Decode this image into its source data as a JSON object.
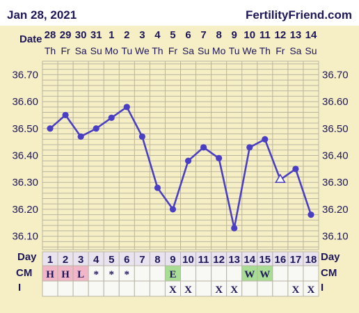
{
  "header": {
    "date": "Jan 28, 2021",
    "brand": "FertilityFriend.com"
  },
  "row_labels": {
    "date": "Date",
    "day": "Day",
    "cm": "CM",
    "intercourse": "I"
  },
  "colors": {
    "panel_bg": "#f6efc6",
    "grid": "#b8b4a0",
    "line": "#4a3fc2",
    "text_dark": "#1d1659",
    "cm_pink": "#f2b6c9",
    "cm_green": "#a9dc94",
    "day_row_bg": "#e8e3ef",
    "blank_row_bg": "#f8f8f4"
  },
  "chart_data": {
    "type": "line",
    "y_ticks": [
      "36.70",
      "36.60",
      "36.50",
      "36.40",
      "36.30",
      "36.20",
      "36.10"
    ],
    "ylim": [
      36.05,
      36.75
    ],
    "dates": [
      "28",
      "29",
      "30",
      "31",
      "1",
      "2",
      "3",
      "4",
      "5",
      "6",
      "7",
      "8",
      "9",
      "10",
      "11",
      "12",
      "13",
      "14"
    ],
    "weekdays": [
      "Th",
      "Fr",
      "Sa",
      "Su",
      "Mo",
      "Tu",
      "We",
      "Th",
      "Fr",
      "Sa",
      "Su",
      "Mo",
      "Tu",
      "We",
      "Th",
      "Fr",
      "Sa",
      "Su"
    ],
    "days": [
      "1",
      "2",
      "3",
      "4",
      "5",
      "6",
      "7",
      "8",
      "9",
      "10",
      "11",
      "12",
      "13",
      "14",
      "15",
      "16",
      "17",
      "18"
    ],
    "temperatures": [
      36.5,
      36.55,
      36.47,
      36.5,
      36.54,
      36.58,
      36.47,
      36.28,
      36.2,
      36.38,
      36.43,
      36.39,
      36.13,
      36.43,
      36.46,
      36.31,
      36.35,
      36.18
    ],
    "open_marker_days": [
      16
    ],
    "cervical_mucus": [
      "H",
      "H",
      "L",
      "*",
      "*",
      "*",
      "",
      "",
      "E",
      "",
      "",
      "",
      "",
      "W",
      "W",
      "",
      "",
      ""
    ],
    "intercourse": [
      "",
      "",
      "",
      "",
      "",
      "",
      "",
      "",
      "X",
      "X",
      "",
      "X",
      "X",
      "",
      "",
      "",
      "X",
      "X"
    ]
  }
}
